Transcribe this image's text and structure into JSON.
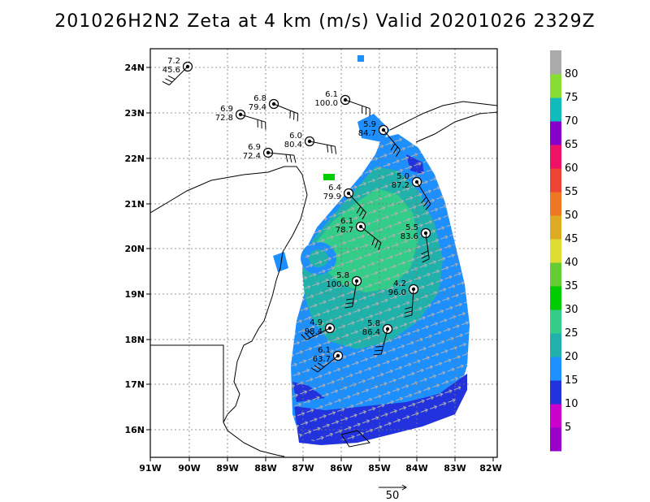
{
  "title": "201026H2N2 Zeta at 4 km (m/s) Valid 20201026 2329Z",
  "axes": {
    "lon_labels": [
      "91W",
      "90W",
      "89W",
      "88W",
      "87W",
      "86W",
      "85W",
      "84W",
      "83W",
      "82W"
    ],
    "lat_labels": [
      "24N",
      "23N",
      "22N",
      "21N",
      "20N",
      "19N",
      "18N",
      "17N",
      "16N"
    ]
  },
  "colorbar": {
    "labels": [
      "5",
      "10",
      "15",
      "20",
      "25",
      "30",
      "35",
      "40",
      "45",
      "50",
      "55",
      "60",
      "65",
      "70",
      "75",
      "80"
    ],
    "colors": [
      "#9900cc",
      "#cc00cc",
      "#2233dd",
      "#1e90ff",
      "#20b2aa",
      "#33cc88",
      "#00cc00",
      "#66cc33",
      "#dddd33",
      "#ddaa22",
      "#ee7722",
      "#ee4433",
      "#ee1166",
      "#8800cc",
      "#11bbbb",
      "#88dd33",
      "#aaaaaa"
    ]
  },
  "reference_vector": {
    "label": "50"
  },
  "stations": [
    {
      "label_top": "7.2",
      "label_bottom": "45.6"
    },
    {
      "label_top": "6.8",
      "label_bottom": "79.4"
    },
    {
      "label_top": "6.9",
      "label_bottom": "72.8"
    },
    {
      "label_top": "6.1",
      "label_bottom": "100.0"
    },
    {
      "label_top": "5.9",
      "label_bottom": "84.7"
    },
    {
      "label_top": "6.0",
      "label_bottom": "80.4"
    },
    {
      "label_top": "6.9",
      "label_bottom": "72.4"
    },
    {
      "label_top": "5.0",
      "label_bottom": "87.2"
    },
    {
      "label_top": "6.4",
      "label_bottom": "79.9"
    },
    {
      "label_top": "6.1",
      "label_bottom": "78.7"
    },
    {
      "label_top": "5.5",
      "label_bottom": "83.6"
    },
    {
      "label_top": "5.8",
      "label_bottom": "100.0"
    },
    {
      "label_top": "4.2",
      "label_bottom": "96.0"
    },
    {
      "label_top": "4.9",
      "label_bottom": "98.4"
    },
    {
      "label_top": "5.8",
      "label_bottom": "86.4"
    },
    {
      "label_top": "6.1",
      "label_bottom": "63.7"
    }
  ]
}
